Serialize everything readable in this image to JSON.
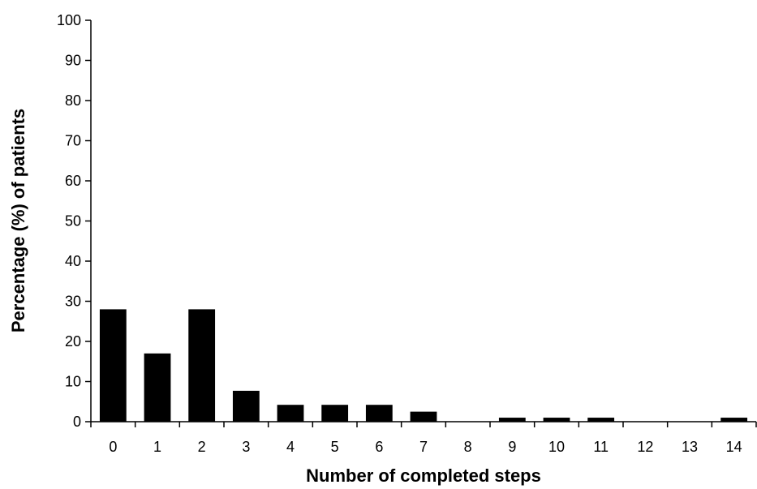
{
  "chart_data": {
    "type": "bar",
    "title": "",
    "xlabel": "Number of completed steps",
    "ylabel": "Percentage (%) of patients",
    "categories": [
      "0",
      "1",
      "2",
      "3",
      "4",
      "5",
      "6",
      "7",
      "8",
      "9",
      "10",
      "11",
      "12",
      "13",
      "14"
    ],
    "values": [
      28,
      17,
      28,
      7.7,
      4.2,
      4.2,
      4.2,
      2.5,
      0,
      1,
      1,
      1,
      0,
      0,
      1
    ],
    "ylim": [
      0,
      100
    ],
    "yticks": [
      "0",
      "10",
      "20",
      "30",
      "40",
      "50",
      "60",
      "70",
      "80",
      "90",
      "100"
    ],
    "grid": false,
    "legend": "none",
    "bar_color": "#000000",
    "axis_color": "#000000"
  }
}
